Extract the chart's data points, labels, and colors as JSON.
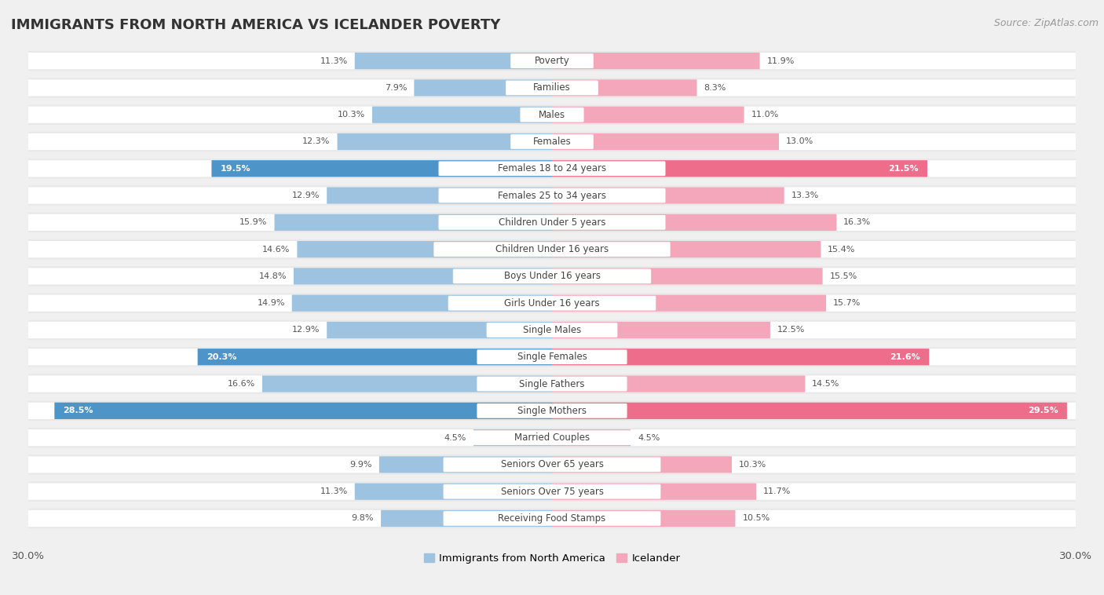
{
  "title": "IMMIGRANTS FROM NORTH AMERICA VS ICELANDER POVERTY",
  "source": "Source: ZipAtlas.com",
  "categories": [
    "Poverty",
    "Families",
    "Males",
    "Females",
    "Females 18 to 24 years",
    "Females 25 to 34 years",
    "Children Under 5 years",
    "Children Under 16 years",
    "Boys Under 16 years",
    "Girls Under 16 years",
    "Single Males",
    "Single Females",
    "Single Fathers",
    "Single Mothers",
    "Married Couples",
    "Seniors Over 65 years",
    "Seniors Over 75 years",
    "Receiving Food Stamps"
  ],
  "left_values": [
    11.3,
    7.9,
    10.3,
    12.3,
    19.5,
    12.9,
    15.9,
    14.6,
    14.8,
    14.9,
    12.9,
    20.3,
    16.6,
    28.5,
    4.5,
    9.9,
    11.3,
    9.8
  ],
  "right_values": [
    11.9,
    8.3,
    11.0,
    13.0,
    21.5,
    13.3,
    16.3,
    15.4,
    15.5,
    15.7,
    12.5,
    21.6,
    14.5,
    29.5,
    4.5,
    10.3,
    11.7,
    10.5
  ],
  "left_color": "#9dc3e0",
  "right_color": "#f4a7bb",
  "highlight_left_color": "#4d94c8",
  "highlight_right_color": "#ed6d8a",
  "highlight_rows": [
    4,
    11,
    13
  ],
  "axis_max": 30.0,
  "legend_left": "Immigrants from North America",
  "legend_right": "Icelander",
  "bg_color": "#f0f0f0",
  "row_bg_color": "#e8e8e8",
  "bar_bg_color": "#ffffff",
  "title_fontsize": 13,
  "source_fontsize": 9,
  "label_fontsize": 8.5,
  "value_fontsize": 8.0
}
